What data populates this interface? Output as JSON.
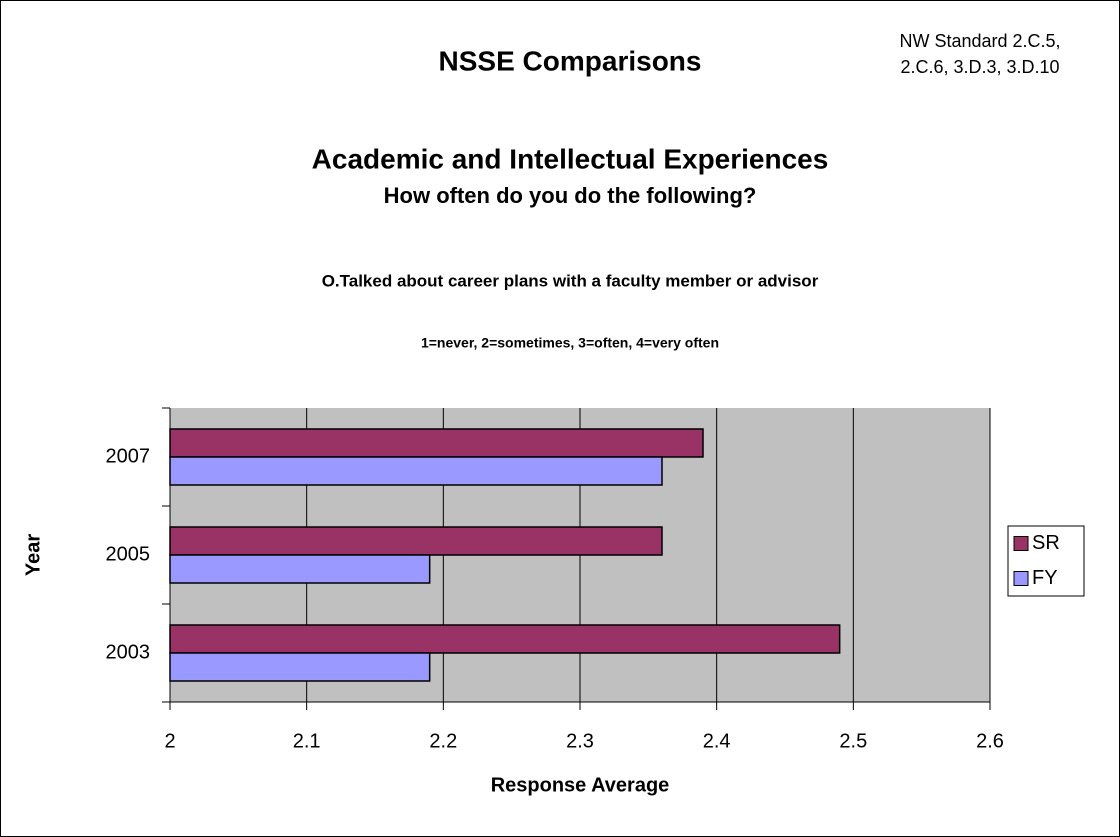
{
  "chart_data": {
    "type": "hbar",
    "title": "NSSE Comparisons",
    "note": [
      "NW Standard 2.C.5,",
      "2.C.6, 3.D.3, 3.D.10"
    ],
    "subtitle": "Academic and Intellectual Experiences",
    "subtitle2": "How often do you do the following?",
    "question": "O.Talked about career plans with a faculty member or advisor",
    "scale_note": "1=never, 2=sometimes, 3=often, 4=very often",
    "xlabel": "Response Average",
    "ylabel": "Year",
    "categories": [
      "2003",
      "2005",
      "2007"
    ],
    "series": [
      {
        "name": "SR",
        "color": "#993366",
        "values": [
          2.49,
          2.36,
          2.39
        ]
      },
      {
        "name": "FY",
        "color": "#9999ff",
        "values": [
          2.19,
          2.19,
          2.36
        ]
      }
    ],
    "xlim": [
      2,
      2.6
    ],
    "xticks": [
      2,
      2.1,
      2.2,
      2.3,
      2.4,
      2.5,
      2.6
    ],
    "grid": true,
    "legend": "right"
  }
}
